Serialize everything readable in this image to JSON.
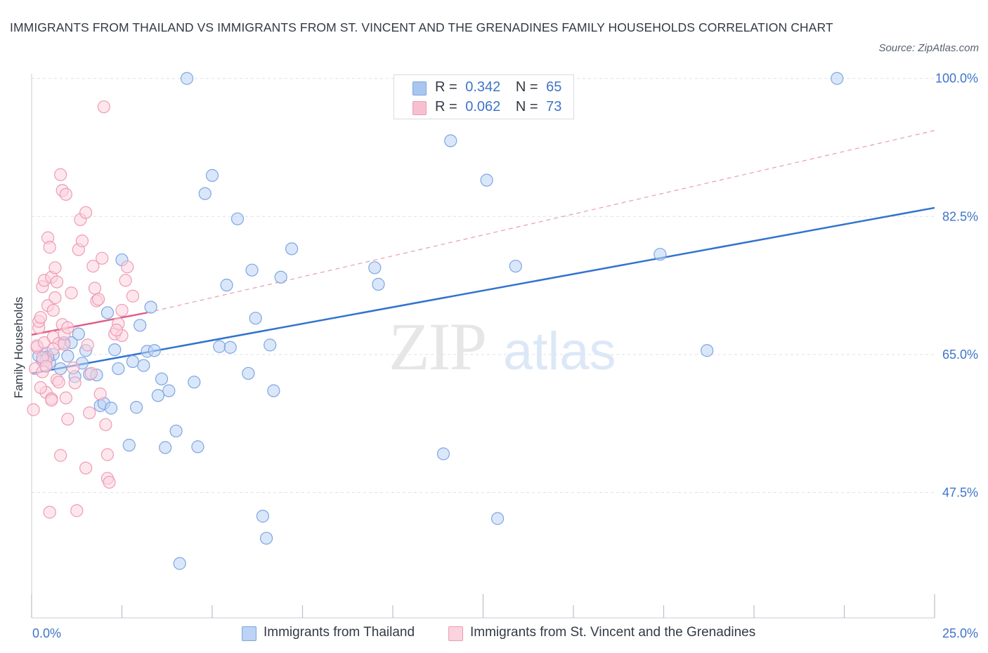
{
  "title": "IMMIGRANTS FROM THAILAND VS IMMIGRANTS FROM ST. VINCENT AND THE GRENADINES FAMILY HOUSEHOLDS CORRELATION CHART",
  "source": "Source: ZipAtlas.com",
  "watermark": {
    "zip": "ZIP",
    "atlas": "atlas"
  },
  "legend": {
    "r_label": "R =",
    "n_label": "N =",
    "rows": [
      {
        "r": "0.342",
        "n": "65",
        "color": "#a9c6f0",
        "border": "#7da6e0"
      },
      {
        "r": "0.062",
        "n": "73",
        "color": "#f7c0d0",
        "border": "#ee9bb5"
      }
    ]
  },
  "bottom_legend": [
    {
      "label": "Immigrants from Thailand",
      "color": "#bcd3f5",
      "border": "#7da6e0"
    },
    {
      "label": "Immigrants from St. Vincent and the Grenadines",
      "color": "#fbd3df",
      "border": "#ee9bb5"
    }
  ],
  "chart_data": {
    "type": "scatter",
    "title": "IMMIGRANTS FROM THAILAND VS IMMIGRANTS FROM ST. VINCENT AND THE GRENADINES FAMILY HOUSEHOLDS CORRELATION CHART",
    "xlabel": "",
    "ylabel": "Family Households",
    "x_tick_labels": [
      {
        "value": 0,
        "label": "0.0%"
      },
      {
        "value": 25,
        "label": "25.0%"
      }
    ],
    "y_tick_labels": [
      {
        "value": 47.5,
        "label": "47.5%"
      },
      {
        "value": 65.0,
        "label": "65.0%"
      },
      {
        "value": 82.5,
        "label": "82.5%"
      },
      {
        "value": 100.0,
        "label": "100.0%"
      }
    ],
    "xlim": [
      0,
      25
    ],
    "ylim": [
      31.6,
      100.6
    ],
    "grid": true,
    "series": [
      {
        "name": "Immigrants from Thailand",
        "color": "#7da6e0",
        "fill": "#bcd3f5",
        "trend": {
          "x": [
            0,
            25
          ],
          "y": [
            62.6,
            83.6
          ],
          "color": "#3173cf",
          "dashed": false
        },
        "points": [
          [
            0.2,
            64.8
          ],
          [
            0.3,
            64.2
          ],
          [
            0.4,
            65.2
          ],
          [
            0.5,
            64.0
          ],
          [
            0.6,
            65.0
          ],
          [
            0.8,
            63.2
          ],
          [
            0.9,
            66.5
          ],
          [
            1.0,
            64.8
          ],
          [
            1.1,
            66.5
          ],
          [
            1.2,
            62.2
          ],
          [
            1.3,
            67.6
          ],
          [
            1.4,
            63.9
          ],
          [
            1.5,
            65.5
          ],
          [
            1.6,
            62.5
          ],
          [
            1.9,
            58.5
          ],
          [
            2.0,
            58.8
          ],
          [
            2.1,
            70.3
          ],
          [
            2.2,
            58.2
          ],
          [
            2.3,
            65.6
          ],
          [
            2.4,
            63.2
          ],
          [
            2.5,
            77.0
          ],
          [
            2.7,
            53.5
          ],
          [
            2.8,
            64.1
          ],
          [
            2.9,
            58.3
          ],
          [
            3.0,
            68.7
          ],
          [
            3.1,
            63.6
          ],
          [
            3.2,
            65.4
          ],
          [
            3.3,
            71.0
          ],
          [
            3.4,
            65.5
          ],
          [
            3.5,
            59.8
          ],
          [
            3.6,
            61.9
          ],
          [
            3.7,
            53.2
          ],
          [
            3.8,
            60.4
          ],
          [
            4.0,
            55.3
          ],
          [
            4.1,
            38.5
          ],
          [
            4.3,
            100.0
          ],
          [
            4.5,
            61.5
          ],
          [
            4.6,
            53.3
          ],
          [
            4.8,
            85.4
          ],
          [
            5.0,
            87.7
          ],
          [
            5.2,
            66.0
          ],
          [
            5.4,
            73.8
          ],
          [
            5.5,
            65.9
          ],
          [
            5.7,
            82.2
          ],
          [
            6.0,
            62.6
          ],
          [
            6.1,
            75.7
          ],
          [
            6.2,
            69.6
          ],
          [
            6.4,
            44.5
          ],
          [
            6.5,
            41.7
          ],
          [
            6.6,
            66.2
          ],
          [
            6.7,
            60.4
          ],
          [
            6.9,
            74.8
          ],
          [
            7.2,
            78.4
          ],
          [
            9.5,
            76.0
          ],
          [
            9.6,
            73.9
          ],
          [
            11.4,
            52.4
          ],
          [
            11.6,
            92.1
          ],
          [
            12.6,
            87.1
          ],
          [
            12.9,
            44.2
          ],
          [
            13.4,
            76.2
          ],
          [
            17.4,
            77.7
          ],
          [
            18.7,
            65.5
          ],
          [
            22.3,
            100.0
          ],
          [
            0.45,
            64.7
          ],
          [
            1.8,
            62.4
          ]
        ]
      },
      {
        "name": "Immigrants from St. Vincent and the Grenadines",
        "color": "#ee9bb5",
        "fill": "#fbd3df",
        "trend": {
          "x": [
            0,
            3.2
          ],
          "y": [
            67.5,
            70.3
          ],
          "color": "#e05d88",
          "dashed": false
        },
        "trend_extension": {
          "x": [
            3.2,
            25
          ],
          "y": [
            70.3,
            93.4
          ],
          "color": "#e89bb3",
          "dashed": true
        },
        "points": [
          [
            0.05,
            58.0
          ],
          [
            0.1,
            63.2
          ],
          [
            0.15,
            65.9
          ],
          [
            0.15,
            66.1
          ],
          [
            0.2,
            68.4
          ],
          [
            0.2,
            69.2
          ],
          [
            0.25,
            69.7
          ],
          [
            0.3,
            73.6
          ],
          [
            0.35,
            74.4
          ],
          [
            0.3,
            62.8
          ],
          [
            0.35,
            66.5
          ],
          [
            0.4,
            60.2
          ],
          [
            0.4,
            64.2
          ],
          [
            0.45,
            71.2
          ],
          [
            0.45,
            79.8
          ],
          [
            0.5,
            45.0
          ],
          [
            0.5,
            78.6
          ],
          [
            0.55,
            74.8
          ],
          [
            0.55,
            59.4
          ],
          [
            0.6,
            67.2
          ],
          [
            0.6,
            70.6
          ],
          [
            0.65,
            76.0
          ],
          [
            0.65,
            72.2
          ],
          [
            0.7,
            74.2
          ],
          [
            0.7,
            61.8
          ],
          [
            0.75,
            66.4
          ],
          [
            0.75,
            61.5
          ],
          [
            0.8,
            52.2
          ],
          [
            0.8,
            87.8
          ],
          [
            0.85,
            85.8
          ],
          [
            0.85,
            68.8
          ],
          [
            0.9,
            66.3
          ],
          [
            0.9,
            67.6
          ],
          [
            0.95,
            85.3
          ],
          [
            1.0,
            56.8
          ],
          [
            1.0,
            68.4
          ],
          [
            1.1,
            72.8
          ],
          [
            1.15,
            63.3
          ],
          [
            1.2,
            61.4
          ],
          [
            1.25,
            45.2
          ],
          [
            1.3,
            78.3
          ],
          [
            1.35,
            82.1
          ],
          [
            1.4,
            79.4
          ],
          [
            1.5,
            50.6
          ],
          [
            1.5,
            83.0
          ],
          [
            1.55,
            66.2
          ],
          [
            1.6,
            57.6
          ],
          [
            1.7,
            76.2
          ],
          [
            1.75,
            73.4
          ],
          [
            1.8,
            71.8
          ],
          [
            1.85,
            72.0
          ],
          [
            1.9,
            60.0
          ],
          [
            1.95,
            77.2
          ],
          [
            2.0,
            96.4
          ],
          [
            2.05,
            56.1
          ],
          [
            2.1,
            52.3
          ],
          [
            2.1,
            49.3
          ],
          [
            2.15,
            48.8
          ],
          [
            2.3,
            67.6
          ],
          [
            2.4,
            68.9
          ],
          [
            2.5,
            67.4
          ],
          [
            2.5,
            70.6
          ],
          [
            2.6,
            74.4
          ],
          [
            2.65,
            76.1
          ],
          [
            2.8,
            72.4
          ],
          [
            0.25,
            60.8
          ],
          [
            0.55,
            59.2
          ],
          [
            0.3,
            64.6
          ],
          [
            0.6,
            65.7
          ],
          [
            0.95,
            59.5
          ],
          [
            1.65,
            62.6
          ],
          [
            2.35,
            68.1
          ],
          [
            0.4,
            63.5
          ]
        ]
      }
    ],
    "legend_stats": [
      {
        "series": "Immigrants from Thailand",
        "R": 0.342,
        "N": 65
      },
      {
        "series": "Immigrants from St. Vincent and the Grenadines",
        "R": 0.062,
        "N": 73
      }
    ],
    "legend_position": "top-center"
  }
}
